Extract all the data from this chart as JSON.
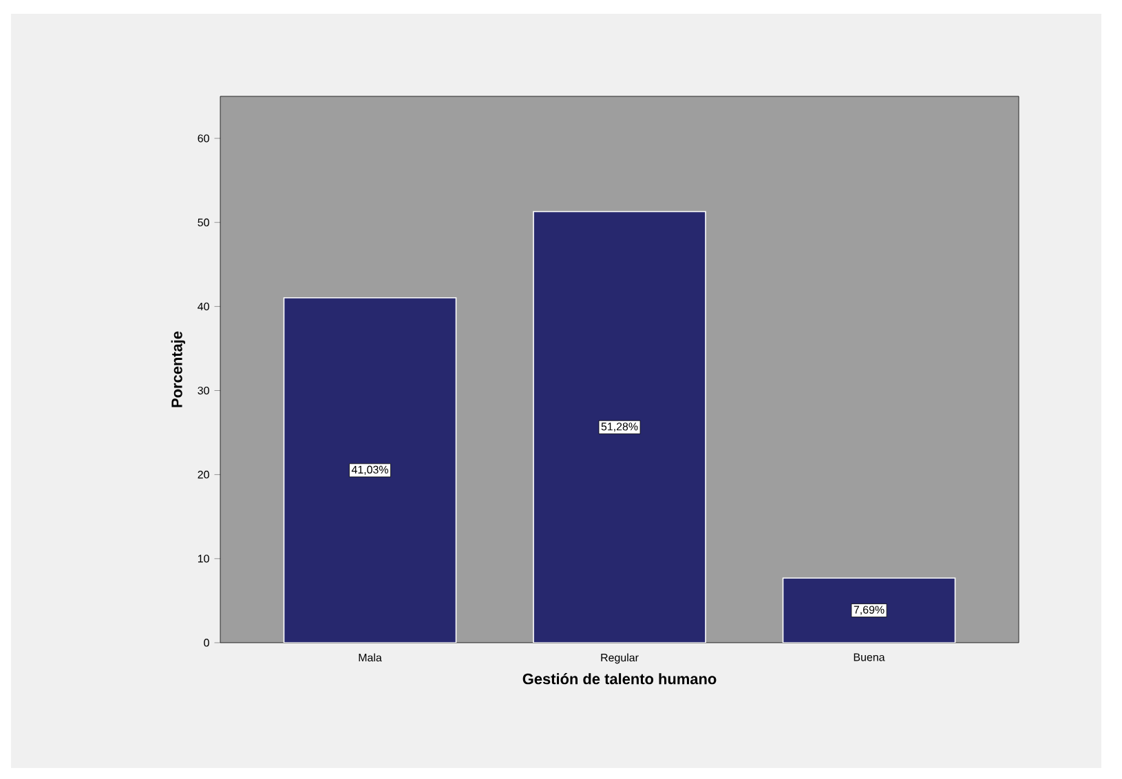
{
  "chart_data": {
    "type": "bar",
    "xlabel": "Gestión de talento humano",
    "ylabel": "Porcentaje",
    "categories": [
      "Mala",
      "Regular",
      "Buena"
    ],
    "values": [
      41.03,
      51.28,
      7.69
    ],
    "value_labels": [
      "41,03%",
      "51,28%",
      "7,69%"
    ],
    "color": "#27286e",
    "ylim": [
      0,
      65
    ],
    "yticks": [
      0,
      10,
      20,
      30,
      40,
      50,
      60
    ],
    "grid": false
  }
}
